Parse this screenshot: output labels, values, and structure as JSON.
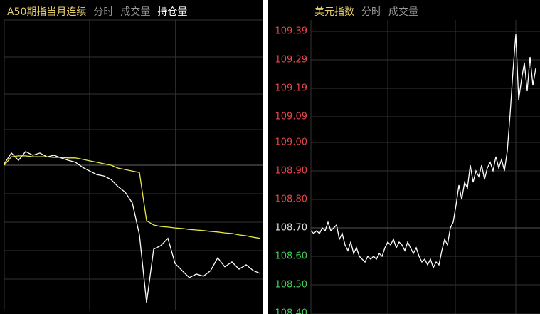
{
  "chart_data": [
    {
      "type": "line",
      "tabs": [
        "A50期指当月连续",
        "分时",
        "成交量",
        "持仓量"
      ],
      "tab_colors": [
        "#e6cf6a",
        "#9a9a9a",
        "#9a9a9a",
        "#ffffff"
      ],
      "ylim": [
        0,
        100
      ],
      "series": [
        {
          "color": "#ffffff",
          "values": [
            50.5,
            54.2,
            51.7,
            54.7,
            53.4,
            54.2,
            52.9,
            53.4,
            52.5,
            51.7,
            51.0,
            49.3,
            48.0,
            46.8,
            46.3,
            45.1,
            42.6,
            40.7,
            37.0,
            26.0,
            2.7,
            21.1,
            22.3,
            24.8,
            16.2,
            13.7,
            11.3,
            12.5,
            11.8,
            13.7,
            18.1,
            15.0,
            16.7,
            14.2,
            15.7,
            13.7,
            12.7
          ]
        },
        {
          "color": "#e8e84a",
          "values": [
            50.0,
            52.9,
            53.2,
            53.2,
            52.9,
            52.9,
            52.9,
            52.7,
            52.7,
            52.5,
            52.5,
            52.0,
            51.5,
            51.0,
            50.5,
            50.0,
            49.0,
            48.5,
            48.0,
            47.5,
            30.9,
            29.4,
            28.9,
            28.7,
            28.4,
            28.2,
            27.9,
            27.7,
            27.5,
            27.2,
            27.0,
            26.7,
            26.5,
            26.0,
            25.7,
            25.2,
            24.8
          ]
        }
      ]
    },
    {
      "type": "line",
      "tabs": [
        "美元指数",
        "分时",
        "成交量"
      ],
      "tab_colors": [
        "#e6cf6a",
        "#9a9a9a",
        "#9a9a9a"
      ],
      "ylim": [
        108.4,
        109.43
      ],
      "yticks": [
        109.39,
        109.29,
        109.19,
        109.09,
        {
          "value": 109,
          "label": "109.00"
        },
        {
          "value": 108.9,
          "label": "108.90"
        },
        {
          "value": 108.8,
          "label": "108.80"
        },
        {
          "value": 108.7,
          "label": "108.70"
        },
        {
          "value": 108.6,
          "label": "108.60"
        },
        {
          "value": 108.5,
          "label": "108.50"
        },
        {
          "value": 108.4,
          "label": "108.40"
        }
      ],
      "base_value": 108.7,
      "tick_colors": {
        "up": "#e8464a",
        "base": "#e0e0e0",
        "down": "#3fcf5a"
      },
      "series": [
        {
          "color": "#ffffff",
          "values": [
            108.69,
            108.68,
            108.69,
            108.68,
            108.7,
            108.69,
            108.72,
            108.69,
            108.7,
            108.71,
            108.66,
            108.68,
            108.64,
            108.62,
            108.65,
            108.61,
            108.63,
            108.6,
            108.59,
            108.58,
            108.6,
            108.59,
            108.6,
            108.59,
            108.61,
            108.6,
            108.63,
            108.65,
            108.64,
            108.66,
            108.63,
            108.65,
            108.64,
            108.62,
            108.65,
            108.63,
            108.61,
            108.63,
            108.6,
            108.58,
            108.59,
            108.57,
            108.59,
            108.56,
            108.58,
            108.57,
            108.62,
            108.66,
            108.64,
            108.7,
            108.72,
            108.78,
            108.85,
            108.8,
            108.86,
            108.84,
            108.92,
            108.86,
            108.9,
            108.88,
            108.92,
            108.87,
            108.91,
            108.93,
            108.9,
            108.95,
            108.91,
            108.94,
            108.9,
            108.97,
            109.1,
            109.25,
            109.38,
            109.15,
            109.22,
            109.28,
            109.18,
            109.3,
            109.2,
            109.26
          ]
        }
      ]
    }
  ]
}
